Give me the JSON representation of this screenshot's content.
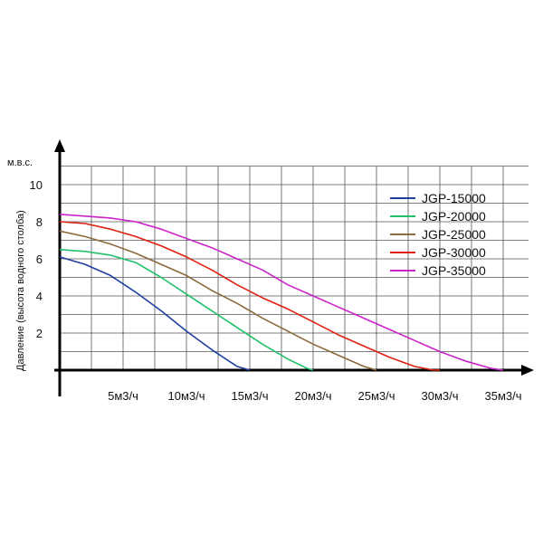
{
  "chart_data": {
    "type": "line",
    "y_unit": "м.в.с.",
    "ylabel": "Давление (высота водного столба)",
    "xlabel": "",
    "xlim": [
      0,
      37
    ],
    "ylim": [
      0,
      11
    ],
    "grid": true,
    "legend_position": "top-right",
    "x_ticks": [
      {
        "value": 5,
        "label": "5м3/ч"
      },
      {
        "value": 10,
        "label": "10м3/ч"
      },
      {
        "value": 15,
        "label": "15м3/ч"
      },
      {
        "value": 20,
        "label": "20м3/ч"
      },
      {
        "value": 25,
        "label": "25м3/ч"
      },
      {
        "value": 30,
        "label": "30м3/ч"
      },
      {
        "value": 35,
        "label": "35м3/ч"
      }
    ],
    "y_ticks": [
      {
        "value": 2,
        "label": "2"
      },
      {
        "value": 4,
        "label": "4"
      },
      {
        "value": 6,
        "label": "6"
      },
      {
        "value": 8,
        "label": "8"
      },
      {
        "value": 10,
        "label": "10"
      }
    ],
    "series": [
      {
        "name": "JGP-15000",
        "color": "#1f3fa0",
        "x": [
          0,
          2,
          4,
          6,
          8,
          10,
          12,
          14,
          15
        ],
        "y": [
          6.1,
          5.7,
          5.1,
          4.2,
          3.2,
          2.1,
          1.1,
          0.2,
          0
        ]
      },
      {
        "name": "JGP-20000",
        "color": "#22c06a",
        "x": [
          0,
          2,
          4,
          6,
          8,
          10,
          12,
          14,
          16,
          18,
          19.5,
          20
        ],
        "y": [
          6.5,
          6.4,
          6.2,
          5.8,
          5.0,
          4.1,
          3.2,
          2.3,
          1.4,
          0.6,
          0.1,
          0
        ]
      },
      {
        "name": "JGP-25000",
        "color": "#8b6a3c",
        "x": [
          0,
          2,
          4,
          6,
          8,
          10,
          12,
          14,
          16,
          18,
          20,
          22,
          24,
          25
        ],
        "y": [
          7.5,
          7.2,
          6.8,
          6.3,
          5.7,
          5.1,
          4.3,
          3.6,
          2.8,
          2.1,
          1.4,
          0.8,
          0.2,
          0
        ]
      },
      {
        "name": "JGP-30000",
        "color": "#e02010",
        "x": [
          0,
          2,
          4,
          6,
          8,
          10,
          12,
          14,
          16,
          18,
          20,
          22,
          24,
          26,
          28,
          29.5,
          30
        ],
        "y": [
          8.0,
          7.9,
          7.6,
          7.2,
          6.7,
          6.1,
          5.4,
          4.6,
          3.9,
          3.3,
          2.6,
          1.9,
          1.3,
          0.7,
          0.2,
          0.0,
          0
        ]
      },
      {
        "name": "JGP-35000",
        "color": "#cc22cc",
        "x": [
          0,
          2,
          4,
          6,
          8,
          10,
          12,
          14,
          16,
          18,
          20,
          22,
          24,
          26,
          28,
          30,
          32,
          34,
          35
        ],
        "y": [
          8.4,
          8.3,
          8.2,
          8.0,
          7.6,
          7.1,
          6.6,
          6.0,
          5.4,
          4.6,
          4.0,
          3.4,
          2.8,
          2.2,
          1.6,
          1.0,
          0.5,
          0.1,
          0
        ]
      }
    ]
  }
}
